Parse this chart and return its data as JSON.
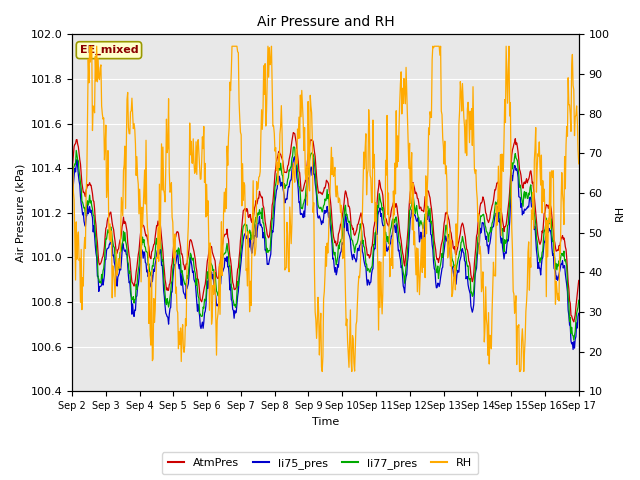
{
  "title": "Air Pressure and RH",
  "xlabel": "Time",
  "ylabel_left": "Air Pressure (kPa)",
  "ylabel_right": "RH",
  "annotation": "EE_mixed",
  "ylim_left": [
    100.4,
    102.0
  ],
  "ylim_right": [
    10,
    100
  ],
  "yticks_left": [
    100.4,
    100.6,
    100.8,
    101.0,
    101.2,
    101.4,
    101.6,
    101.8,
    102.0
  ],
  "yticks_right": [
    10,
    20,
    30,
    40,
    50,
    60,
    70,
    80,
    90,
    100
  ],
  "colors": {
    "AtmPres": "#cc0000",
    "li75_pres": "#0000cc",
    "li77_pres": "#00aa00",
    "RH": "#ffaa00"
  },
  "bg_color": "#e8e8e8",
  "fig_bg": "#ffffff",
  "legend_labels": [
    "AtmPres",
    "li75_pres",
    "li77_pres",
    "RH"
  ],
  "xtick_labels": [
    "Sep 2",
    "Sep 3",
    "Sep 4",
    "Sep 5",
    "Sep 6",
    "Sep 7",
    "Sep 8",
    "Sep 9",
    "Sep 10",
    "Sep 11",
    "Sep 12",
    "Sep 13",
    "Sep 14",
    "Sep 15",
    "Sep 16",
    "Sep 17"
  ],
  "n_days": 15,
  "pts_per_day": 48,
  "seed": 42
}
